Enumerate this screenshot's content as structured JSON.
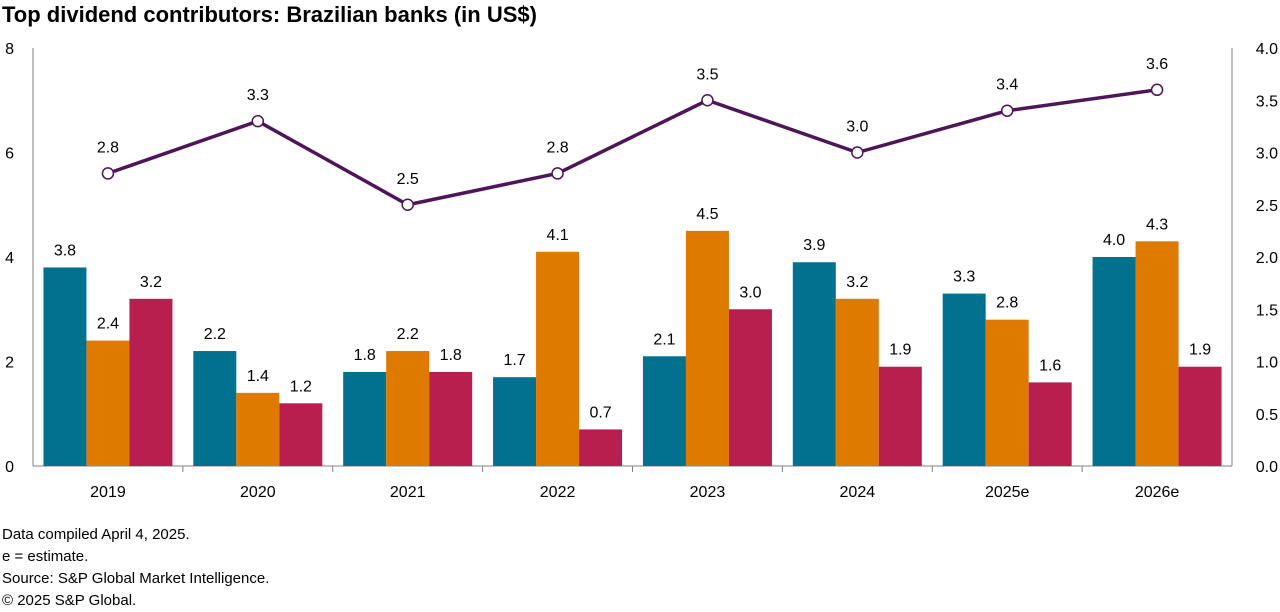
{
  "title": "Top dividend contributors: Brazilian banks (in US$)",
  "footnotes": [
    "Data compiled April 4, 2025.",
    "e = estimate.",
    "Source: S&P Global Market Intelligence.",
    "© 2025 S&P Global."
  ],
  "chart_data": {
    "type": "bar",
    "combo": "bars on left axis, line on right axis",
    "categories": [
      "2019",
      "2020",
      "2021",
      "2022",
      "2023",
      "2024",
      "2025e",
      "2026e"
    ],
    "series": [
      {
        "type": "bar",
        "axis": "left",
        "color": "#00728F",
        "values": [
          3.8,
          2.2,
          1.8,
          1.7,
          2.1,
          3.9,
          3.3,
          4.0
        ]
      },
      {
        "type": "bar",
        "axis": "left",
        "color": "#DE7A00",
        "values": [
          2.4,
          1.4,
          2.2,
          4.1,
          4.5,
          3.2,
          2.8,
          4.3
        ]
      },
      {
        "type": "bar",
        "axis": "left",
        "color": "#B81F4F",
        "values": [
          3.2,
          1.2,
          1.8,
          0.7,
          3.0,
          1.9,
          1.6,
          1.9
        ]
      },
      {
        "type": "line",
        "axis": "right",
        "color": "#4E1559",
        "values": [
          2.8,
          3.3,
          2.5,
          2.8,
          3.5,
          3.0,
          3.4,
          3.6
        ]
      }
    ],
    "y_left": {
      "ylim": [
        0,
        8
      ],
      "ticks": [
        "0",
        "2",
        "4",
        "6",
        "8"
      ]
    },
    "y_right": {
      "ylim": [
        0,
        4
      ],
      "ticks": [
        "0.0",
        "0.5",
        "1.0",
        "1.5",
        "2.0",
        "2.5",
        "3.0",
        "3.5",
        "4.0"
      ]
    },
    "grid": false,
    "legend": "none"
  }
}
